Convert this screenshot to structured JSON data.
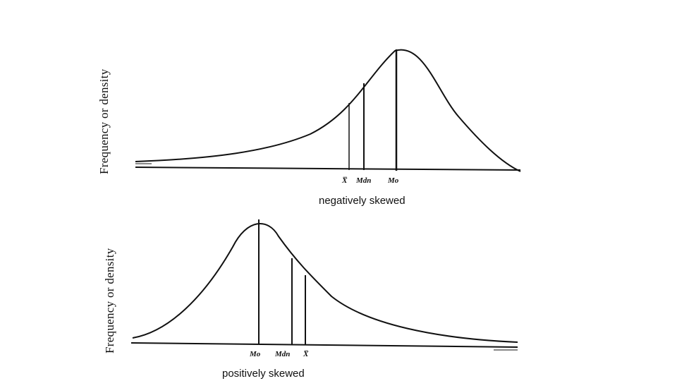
{
  "panels": [
    {
      "id": "negative",
      "ylabel": "Frequency or density",
      "caption": "negatively skewed",
      "markers": [
        {
          "key": "mean",
          "label": "X̅"
        },
        {
          "key": "median",
          "label": "Mdn"
        },
        {
          "key": "mode",
          "label": "Mo"
        }
      ]
    },
    {
      "id": "positive",
      "ylabel": "Frequency or density",
      "caption": "positively skewed",
      "markers": [
        {
          "key": "mode",
          "label": "Mo"
        },
        {
          "key": "median",
          "label": "Mdn"
        },
        {
          "key": "mean",
          "label": "X̅"
        }
      ]
    }
  ]
}
